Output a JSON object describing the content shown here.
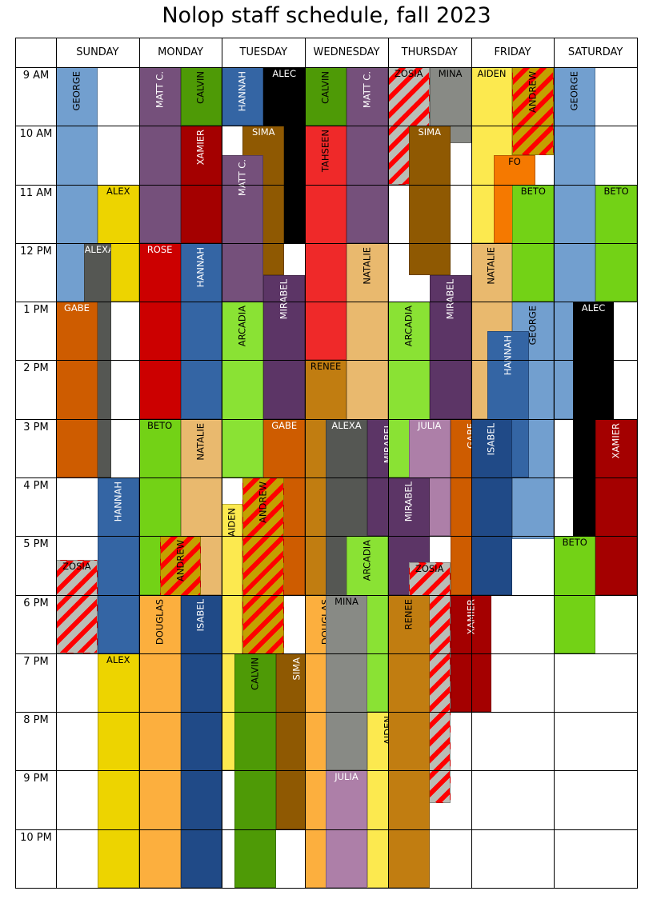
{
  "title": "Nolop staff schedule, fall 2023",
  "days": [
    "SUNDAY",
    "MONDAY",
    "TUESDAY",
    "WEDNESDAY",
    "THURSDAY",
    "FRIDAY",
    "SATURDAY"
  ],
  "hours": [
    "9 AM",
    "10 AM",
    "11 AM",
    "12 PM",
    "1 PM",
    "2 PM",
    "3 PM",
    "4 PM",
    "5 PM",
    "6 PM",
    "7 PM",
    "8 PM",
    "9 PM",
    "10 PM"
  ],
  "schedule_start_hour": 9,
  "schedule_end_hour": 23,
  "colors": {
    "GEORGE": "#729fcf",
    "ALEX": "#edd400",
    "ALEXA": "#555753",
    "GABE": "#ce5c00",
    "HANNAH": "#3465a4",
    "ZOSIA": "#babdb6",
    "MATT C.": "#75507b",
    "CALVIN": "#4e9a06",
    "XAMIER": "#a40000",
    "ROSE": "#cc0000",
    "BETO": "#73d216",
    "NATALIE": "#e9b96e",
    "ANDREW": "#c4a000",
    "DOUGLAS": "#fcaf3e",
    "ISABEL": "#204a87",
    "ALEC": "#000000",
    "SIMA": "#8f5902",
    "MIRABEL": "#5c3566",
    "ARCADIA": "#8ae234",
    "AIDEN": "#fce94f",
    "TAHSEEN": "#ef2929",
    "RENEE": "#c17d11",
    "MINA": "#888a85",
    "JULIA": "#ad7fa8",
    "FO": "#f57900",
    "stripe": "#ff0000"
  },
  "shifts": [
    {
      "name": "GEORGE",
      "day": 0,
      "start": 9,
      "end": 13,
      "sub": 0,
      "subs": 2
    },
    {
      "name": "ALEX",
      "day": 0,
      "start": 11,
      "end": 13,
      "sub": 1,
      "subs": 2
    },
    {
      "name": "ALEXA",
      "day": 0,
      "start": 12,
      "end": 16,
      "sub": 1,
      "subs": 3
    },
    {
      "name": "GABE",
      "day": 0,
      "start": 13,
      "end": 16,
      "sub": 0,
      "subs": 2
    },
    {
      "name": "HANNAH",
      "day": 0,
      "start": 16,
      "end": 19,
      "sub": 1,
      "subs": 2
    },
    {
      "name": "ZOSIA",
      "day": 0,
      "start": 17.4,
      "end": 19,
      "sub": 0,
      "subs": 2
    },
    {
      "name": "ALEX",
      "day": 0,
      "start": 19,
      "end": 23,
      "sub": 1,
      "subs": 2
    },
    {
      "name": "MATT C.",
      "day": 1,
      "start": 9,
      "end": 12,
      "sub": 0,
      "subs": 2
    },
    {
      "name": "CALVIN",
      "day": 1,
      "start": 9,
      "end": 10,
      "sub": 1,
      "subs": 2
    },
    {
      "name": "XAMIER",
      "day": 1,
      "start": 10,
      "end": 12,
      "sub": 1,
      "subs": 2
    },
    {
      "name": "ROSE",
      "day": 1,
      "start": 12,
      "end": 15,
      "sub": 0,
      "subs": 2
    },
    {
      "name": "HANNAH",
      "day": 1,
      "start": 12,
      "end": 15,
      "sub": 1,
      "subs": 2
    },
    {
      "name": "BETO",
      "day": 1,
      "start": 15,
      "end": 18,
      "sub": 0,
      "subs": 2
    },
    {
      "name": "NATALIE",
      "day": 1,
      "start": 15,
      "end": 18,
      "sub": 1,
      "subs": 2
    },
    {
      "name": "ANDREW",
      "day": 1,
      "start": 17,
      "end": 21.95,
      "sub": 0.5,
      "subs": 2
    },
    {
      "name": "DOUGLAS",
      "day": 1,
      "start": 18,
      "end": 23,
      "sub": 0,
      "subs": 2
    },
    {
      "name": "ISABEL",
      "day": 1,
      "start": 18,
      "end": 23,
      "sub": 1,
      "subs": 2
    },
    {
      "name": "HANNAH",
      "day": 2,
      "start": 9,
      "end": 10,
      "sub": 0,
      "subs": 2
    },
    {
      "name": "ALEC",
      "day": 2,
      "start": 9,
      "end": 12,
      "sub": 1,
      "subs": 2
    },
    {
      "name": "SIMA",
      "day": 2,
      "start": 10,
      "end": 12.55,
      "sub": 0.5,
      "subs": 2
    },
    {
      "name": "MATT C.",
      "day": 2,
      "start": 10.5,
      "end": 13,
      "sub": 0,
      "subs": 2
    },
    {
      "name": "MIRABEL",
      "day": 2,
      "start": 12.55,
      "end": 15,
      "sub": 1,
      "subs": 2
    },
    {
      "name": "ARCADIA",
      "day": 2,
      "start": 13,
      "end": 16,
      "sub": 0,
      "subs": 2
    },
    {
      "name": "GABE",
      "day": 2,
      "start": 15,
      "end": 18,
      "sub": 1,
      "subs": 2
    },
    {
      "name": "ANDREW",
      "day": 2,
      "start": 16,
      "end": 21,
      "sub": 0.5,
      "subs": 2
    },
    {
      "name": "AIDEN",
      "day": 2,
      "start": 16.45,
      "end": 21,
      "sub": 0,
      "subs": 4
    },
    {
      "name": "CALVIN",
      "day": 2,
      "start": 19,
      "end": 23,
      "sub": 0.3,
      "subs": 2
    },
    {
      "name": "SIMA",
      "day": 2,
      "start": 19,
      "end": 22,
      "sub": 1.3,
      "subs": 2
    },
    {
      "name": "CALVIN",
      "day": 3,
      "start": 9,
      "end": 10,
      "sub": 0,
      "subs": 2
    },
    {
      "name": "MATT C.",
      "day": 3,
      "start": 9,
      "end": 12,
      "sub": 1,
      "subs": 2
    },
    {
      "name": "TAHSEEN",
      "day": 3,
      "start": 10,
      "end": 14,
      "sub": 0,
      "subs": 2
    },
    {
      "name": "NATALIE",
      "day": 3,
      "start": 12,
      "end": 16,
      "sub": 1,
      "subs": 2
    },
    {
      "name": "RENEE",
      "day": 3,
      "start": 14,
      "end": 18,
      "sub": 0,
      "subs": 2
    },
    {
      "name": "ALEXA",
      "day": 3,
      "start": 15,
      "end": 20,
      "sub": 0.5,
      "subs": 2
    },
    {
      "name": "MIRABEL",
      "day": 3,
      "start": 15,
      "end": 17,
      "sub": 1.5,
      "subs": 2
    },
    {
      "name": "ARCADIA",
      "day": 3,
      "start": 17,
      "end": 20,
      "sub": 1,
      "subs": 2
    },
    {
      "name": "DOUGLAS",
      "day": 3,
      "start": 18,
      "end": 23,
      "sub": 0,
      "subs": 2
    },
    {
      "name": "MINA",
      "day": 3,
      "start": 18,
      "end": 21,
      "sub": 0.5,
      "subs": 2
    },
    {
      "name": "AIDEN",
      "day": 3,
      "start": 20,
      "end": 23,
      "sub": 1.5,
      "subs": 2
    },
    {
      "name": "JULIA",
      "day": 3,
      "start": 21,
      "end": 23,
      "sub": 0.5,
      "subs": 2
    },
    {
      "name": "ZOSIA",
      "day": 4,
      "start": 9,
      "end": 11,
      "sub": 0,
      "subs": 2
    },
    {
      "name": "MINA",
      "day": 4,
      "start": 9,
      "end": 10.3,
      "sub": 1,
      "subs": 2
    },
    {
      "name": "SIMA",
      "day": 4,
      "start": 10,
      "end": 12.55,
      "sub": 0.5,
      "subs": 2
    },
    {
      "name": "MIRABEL",
      "day": 4,
      "start": 12.55,
      "end": 15,
      "sub": 1,
      "subs": 2
    },
    {
      "name": "ARCADIA",
      "day": 4,
      "start": 13,
      "end": 16,
      "sub": 0,
      "subs": 2
    },
    {
      "name": "JULIA",
      "day": 4,
      "start": 15,
      "end": 17,
      "sub": 0.5,
      "subs": 2
    },
    {
      "name": "GABE",
      "day": 4,
      "start": 15,
      "end": 18,
      "sub": 1.5,
      "subs": 2
    },
    {
      "name": "MIRABEL",
      "day": 4,
      "start": 16,
      "end": 18,
      "sub": 0,
      "subs": 2
    },
    {
      "name": "ZOSIA",
      "day": 4,
      "start": 17.45,
      "end": 21.55,
      "sub": 0.5,
      "subs": 2
    },
    {
      "name": "RENEE",
      "day": 4,
      "start": 18,
      "end": 23,
      "sub": 0,
      "subs": 2
    },
    {
      "name": "XAMIER",
      "day": 4,
      "start": 18,
      "end": 20,
      "sub": 1.5,
      "subs": 2
    },
    {
      "name": "AIDEN",
      "day": 5,
      "start": 9,
      "end": 12,
      "sub": 0,
      "subs": 2
    },
    {
      "name": "ANDREW",
      "day": 5,
      "start": 9,
      "end": 10.5,
      "sub": 1,
      "subs": 2
    },
    {
      "name": "FO",
      "day": 5,
      "start": 10.5,
      "end": 12,
      "sub": 0.55,
      "subs": 2
    },
    {
      "name": "BETO",
      "day": 5,
      "start": 11,
      "end": 13,
      "sub": 1,
      "subs": 2
    },
    {
      "name": "NATALIE",
      "day": 5,
      "start": 12,
      "end": 15,
      "sub": 0,
      "subs": 2
    },
    {
      "name": "GEORGE",
      "day": 5,
      "start": 13,
      "end": 17.05,
      "sub": 1,
      "subs": 2
    },
    {
      "name": "HANNAH",
      "day": 5,
      "start": 13.5,
      "end": 16,
      "sub": 0.4,
      "subs": 2
    },
    {
      "name": "ISABEL",
      "day": 5,
      "start": 15,
      "end": 18,
      "sub": 0,
      "subs": 2
    },
    {
      "name": "GEORGE",
      "day": 6,
      "start": 9,
      "end": 15,
      "sub": 0,
      "subs": 2
    },
    {
      "name": "BETO",
      "day": 6,
      "start": 11,
      "end": 13,
      "sub": 1,
      "subs": 2
    },
    {
      "name": "ALEC",
      "day": 6,
      "start": 13,
      "end": 17,
      "sub": 0.45,
      "subs": 2
    },
    {
      "name": "XAMIER",
      "day": 6,
      "start": 15,
      "end": 18,
      "sub": 1,
      "subs": 2
    },
    {
      "name": "BETO",
      "day": 6,
      "start": 17,
      "end": 19,
      "sub": 0,
      "subs": 2
    }
  ]
}
